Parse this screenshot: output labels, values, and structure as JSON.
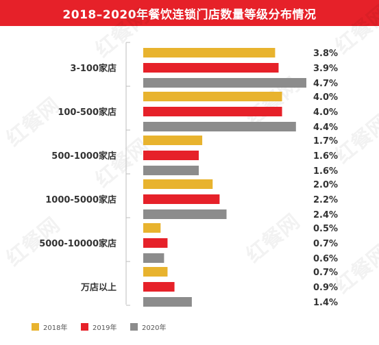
{
  "chart_data": {
    "type": "bar",
    "orientation": "horizontal",
    "title": "2018–2020年餐饮连锁门店数量等级分布情况",
    "categories": [
      "3-100家店",
      "100-500家店",
      "500-1000家店",
      "1000-5000家店",
      "5000-10000家店",
      "万店以上"
    ],
    "series": [
      {
        "name": "2018年",
        "color": "#e8b32e",
        "values": [
          3.8,
          4.0,
          1.7,
          2.0,
          0.5,
          0.7
        ]
      },
      {
        "name": "2019年",
        "color": "#e62129",
        "values": [
          3.9,
          4.0,
          1.6,
          2.2,
          0.7,
          0.9
        ]
      },
      {
        "name": "2020年",
        "color": "#8c8c8c",
        "values": [
          4.7,
          4.4,
          1.6,
          2.4,
          0.6,
          1.4
        ]
      }
    ],
    "value_labels": [
      [
        "3.8%",
        "3.9%",
        "4.7%"
      ],
      [
        "4.0%",
        "4.0%",
        "4.4%"
      ],
      [
        "1.7%",
        "1.6%",
        "1.6%"
      ],
      [
        "2.0%",
        "2.2%",
        "2.4%"
      ],
      [
        "0.5%",
        "0.7%",
        "0.6%"
      ],
      [
        "0.7%",
        "0.9%",
        "1.4%"
      ]
    ],
    "xlim": [
      0,
      4.7
    ],
    "grid": false,
    "legend_position": "bottom-left",
    "watermark": "红餐网"
  }
}
